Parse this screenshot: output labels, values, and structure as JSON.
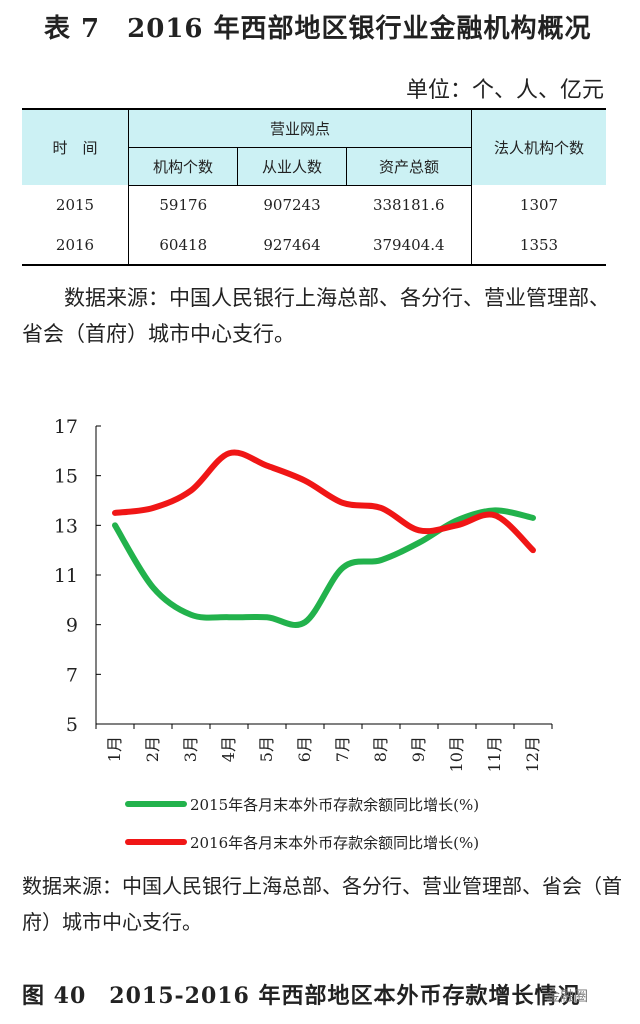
{
  "table": {
    "title": "表 7　2016 年西部地区银行业金融机构概况",
    "unit": "单位：个、人、亿元",
    "headers": {
      "time": "时　间",
      "group": "营业网点",
      "institutions": "机构个数",
      "employees": "从业人数",
      "assets": "资产总额",
      "legal_entities": "法人机构个数"
    },
    "rows": [
      {
        "year": "2015",
        "institutions": "59176",
        "employees": "907243",
        "assets": "338181.6",
        "legal_entities": "1307"
      },
      {
        "year": "2016",
        "institutions": "60418",
        "employees": "927464",
        "assets": "379404.4",
        "legal_entities": "1353"
      }
    ],
    "source": "数据来源：中国人民银行上海总部、各分行、营业管理部、省会（首府）城市中心支行。"
  },
  "chart_data": {
    "type": "line",
    "title": "图 40　2015-2016 年西部地区本外币存款增长情况",
    "categories": [
      "1月",
      "2月",
      "3月",
      "4月",
      "5月",
      "6月",
      "7月",
      "8月",
      "9月",
      "10月",
      "11月",
      "12月"
    ],
    "series": [
      {
        "name": "2015年各月末本外币存款余额同比增长(%)",
        "color": "#22b24c",
        "values": [
          13.0,
          10.5,
          9.4,
          9.3,
          9.3,
          9.1,
          11.3,
          11.6,
          12.3,
          13.2,
          13.6,
          13.3
        ]
      },
      {
        "name": "2016年各月末本外币存款余额同比增长(%)",
        "color": "#f01616",
        "values": [
          13.5,
          13.7,
          14.4,
          15.9,
          15.4,
          14.8,
          13.9,
          13.7,
          12.8,
          13.0,
          13.4,
          12.0
        ]
      }
    ],
    "yticks": [
      "17",
      "15",
      "13",
      "11",
      "9",
      "7",
      "5"
    ],
    "ylim": [
      5,
      17
    ],
    "xlabel": "",
    "ylabel": "",
    "legend_position": "bottom"
  },
  "figure": {
    "source": "数据来源：中国人民银行上海总部、各分行、营业管理部、省会（首府）城市中心支行。",
    "watermark": "金融圈"
  }
}
